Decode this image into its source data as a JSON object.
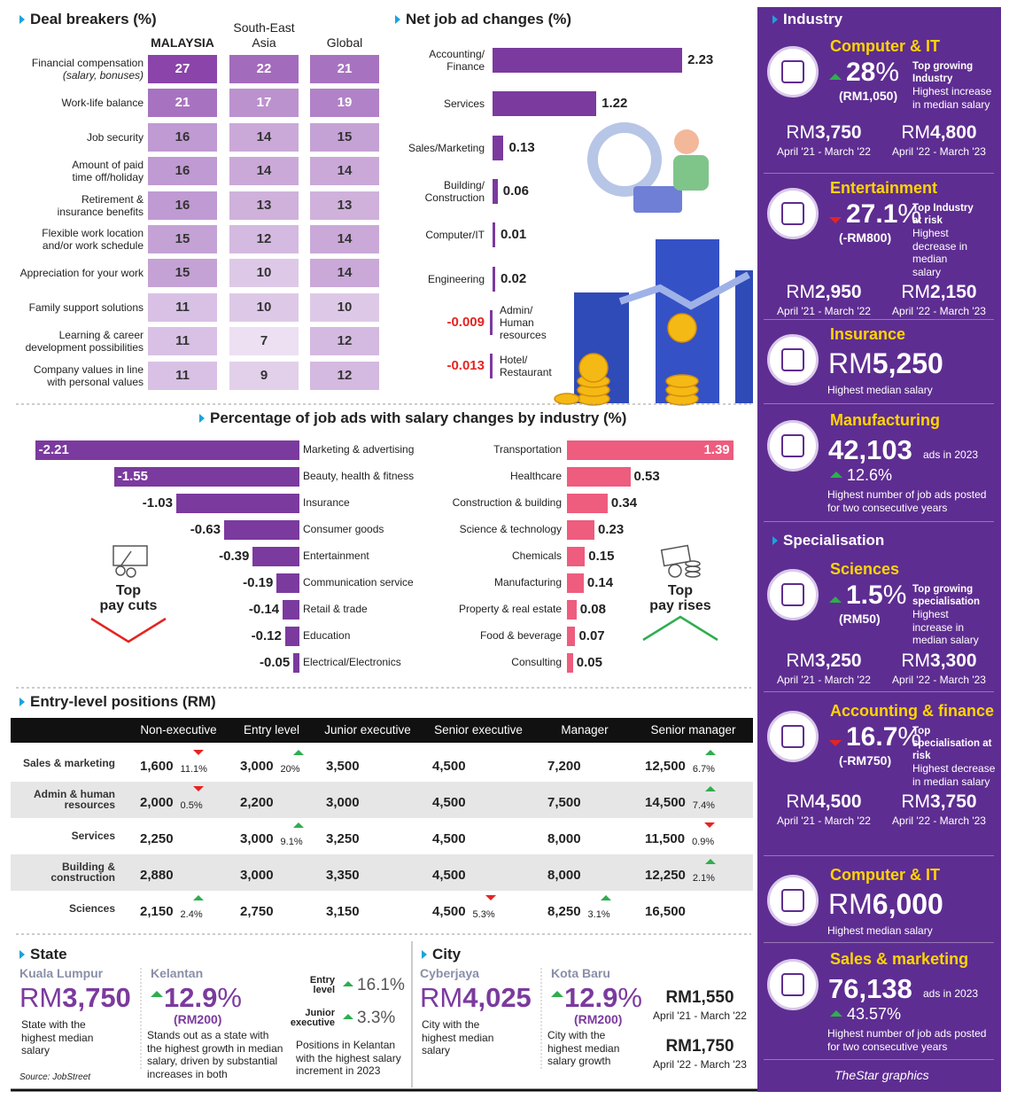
{
  "deal_breakers": {
    "title": "Deal breakers (%)",
    "columns": [
      "MALAYSIA",
      "South-East\nAsia",
      "Global"
    ],
    "rows": [
      {
        "label": "Financial compensation",
        "note": "(salary, bonuses)",
        "values": [
          27,
          22,
          21
        ]
      },
      {
        "label": "Work-life balance",
        "values": [
          21,
          17,
          19
        ]
      },
      {
        "label": "Job security",
        "values": [
          16,
          14,
          15
        ]
      },
      {
        "label": "Amount of paid\ntime off/holiday",
        "values": [
          16,
          14,
          14
        ]
      },
      {
        "label": "Retirement &\ninsurance benefits",
        "values": [
          16,
          13,
          13
        ]
      },
      {
        "label": "Flexible work location\nand/or work schedule",
        "values": [
          15,
          12,
          14
        ]
      },
      {
        "label": "Appreciation for your work",
        "values": [
          15,
          10,
          14
        ]
      },
      {
        "label": "Family support solutions",
        "values": [
          11,
          10,
          10
        ]
      },
      {
        "label": "Learning & career\ndevelopment possibilities",
        "values": [
          11,
          7,
          12
        ]
      },
      {
        "label": "Company values in line\nwith personal values",
        "values": [
          11,
          9,
          12
        ]
      }
    ]
  },
  "chart_data": [
    {
      "type": "bar",
      "title": "Net job ad changes (%)",
      "categories": [
        "Accounting/\nFinance",
        "Services",
        "Sales/Marketing",
        "Building/\nConstruction",
        "Computer/IT",
        "Engineering",
        "Admin/\nHuman\nresources",
        "Hotel/\nRestaurant"
      ],
      "values": [
        2.23,
        1.22,
        0.13,
        0.06,
        0.01,
        0.02,
        -0.009,
        -0.013
      ],
      "color": "#7b3a9e",
      "negative_color": "#e52421"
    },
    {
      "type": "bar",
      "title": "Percentage of job ads with salary changes by industry (%)",
      "categories": [
        "Marketing & advertising",
        "Beauty, health & fitness",
        "Insurance",
        "Consumer goods",
        "Entertainment",
        "Communication service",
        "Retail & trade",
        "Education",
        "Electrical/Electronics"
      ],
      "values": [
        -2.21,
        -1.55,
        -1.03,
        -0.63,
        -0.39,
        -0.19,
        -0.14,
        -0.12,
        -0.05
      ],
      "color": "#7b3a9e",
      "annotation": "Top\npay cuts"
    },
    {
      "type": "bar",
      "categories": [
        "Transportation",
        "Healthcare",
        "Construction & building",
        "Science & technology",
        "Chemicals",
        "Manufacturing",
        "Property & real estate",
        "Food & beverage",
        "Consulting"
      ],
      "values": [
        1.39,
        0.53,
        0.34,
        0.23,
        0.15,
        0.14,
        0.08,
        0.07,
        0.05
      ],
      "color": "#ee5c7e",
      "annotation": "Top\npay rises"
    }
  ],
  "entry_level": {
    "title": "Entry-level positions (RM)",
    "columns": [
      "Non-executive",
      "Entry level",
      "Junior executive",
      "Senior executive",
      "Manager",
      "Senior manager"
    ],
    "rows": [
      {
        "label": "Sales & marketing",
        "cells": [
          {
            "value": "1,600",
            "change": "11.1%",
            "trend": "down"
          },
          {
            "value": "3,000",
            "change": "20%",
            "trend": "up"
          },
          {
            "value": "3,500"
          },
          {
            "value": "4,500"
          },
          {
            "value": "7,200"
          },
          {
            "value": "12,500",
            "change": "6.7%",
            "trend": "up"
          }
        ]
      },
      {
        "label": "Admin & human\nresources",
        "cells": [
          {
            "value": "2,000",
            "change": "0.5%",
            "trend": "down"
          },
          {
            "value": "2,200"
          },
          {
            "value": "3,000"
          },
          {
            "value": "4,500"
          },
          {
            "value": "7,500"
          },
          {
            "value": "14,500",
            "change": "7.4%",
            "trend": "up"
          }
        ]
      },
      {
        "label": "Services",
        "cells": [
          {
            "value": "2,250"
          },
          {
            "value": "3,000",
            "change": "9.1%",
            "trend": "up"
          },
          {
            "value": "3,250"
          },
          {
            "value": "4,500"
          },
          {
            "value": "8,000"
          },
          {
            "value": "11,500",
            "change": "0.9%",
            "trend": "down"
          }
        ]
      },
      {
        "label": "Building &\nconstruction",
        "cells": [
          {
            "value": "2,880"
          },
          {
            "value": "3,000"
          },
          {
            "value": "3,350"
          },
          {
            "value": "4,500"
          },
          {
            "value": "8,000"
          },
          {
            "value": "12,250",
            "change": "2.1%",
            "trend": "up"
          }
        ]
      },
      {
        "label": "Sciences",
        "cells": [
          {
            "value": "2,150",
            "change": "2.4%",
            "trend": "up"
          },
          {
            "value": "2,750"
          },
          {
            "value": "3,150"
          },
          {
            "value": "4,500",
            "change": "5.3%",
            "trend": "down"
          },
          {
            "value": "8,250",
            "change": "3.1%",
            "trend": "up"
          },
          {
            "value": "16,500"
          }
        ]
      }
    ]
  },
  "state": {
    "title": "State",
    "items": [
      {
        "name": "Kuala Lumpur",
        "value": "RM3,750",
        "note": "State with the\nhighest median\nsalary"
      },
      {
        "name": "Kelantan",
        "value": "12.9%",
        "trend": "up",
        "sub": "(RM200)",
        "note": "Stands out as a state with\nthe highest growth in median\nsalary, driven by substantial\nincreases in both"
      }
    ],
    "positions": [
      {
        "label": "Entry\nlevel",
        "value": "16.1%",
        "trend": "up"
      },
      {
        "label": "Junior\nexecutive",
        "value": "3.3%",
        "trend": "up"
      }
    ],
    "positions_note": "Positions in Kelantan\nwith the highest salary\nincrement in 2023",
    "source": "Source: JobStreet"
  },
  "city": {
    "title": "City",
    "items": [
      {
        "name": "Cyberjaya",
        "value": "RM4,025",
        "note": "City with the\nhighest median\nsalary"
      },
      {
        "name": "Kota Baru",
        "value": "12.9%",
        "trend": "up",
        "sub": "(RM200)",
        "note": "City with the\nhighest median\nsalary growth"
      }
    ],
    "periods": [
      {
        "value": "RM1,550",
        "label": "April '21 - March '22"
      },
      {
        "value": "RM1,750",
        "label": "April '22 - March '23"
      }
    ]
  },
  "sidebar": {
    "sections": [
      {
        "title": "Industry",
        "items": [
          {
            "name": "Computer & IT",
            "change": "28%",
            "trend": "up",
            "sub": "(RM1,050)",
            "tag": "Top growing\nIndustry",
            "note": "Highest increase\nin median salary",
            "periods": [
              {
                "value": "RM3,750",
                "label": "April '21 - March '22"
              },
              {
                "value": "RM4,800",
                "label": "April '22 - March '23"
              }
            ]
          },
          {
            "name": "Entertainment",
            "change": "27.1%",
            "trend": "down",
            "sub": "(-RM800)",
            "tag": "Top Industry\nat risk",
            "note": "Highest\ndecrease in\nmedian\nsalary",
            "periods": [
              {
                "value": "RM2,950",
                "label": "April '21 - March '22"
              },
              {
                "value": "RM2,150",
                "label": "April '22 - March '23"
              }
            ]
          },
          {
            "name": "Insurance",
            "value": "RM5,250",
            "note": "Highest median salary"
          },
          {
            "name": "Manufacturing",
            "value": "42,103",
            "unit": "ads in 2023",
            "change": "12.6%",
            "trend": "up",
            "note": "Highest number of job ads posted\nfor two consecutive years"
          }
        ]
      },
      {
        "title": "Specialisation",
        "items": [
          {
            "name": "Sciences",
            "change": "1.5%",
            "trend": "up",
            "sub": "(RM50)",
            "tag": "Top growing\nspecialisation",
            "note": "Highest\nincrease in\nmedian salary",
            "periods": [
              {
                "value": "RM3,250",
                "label": "April '21 - March '22"
              },
              {
                "value": "RM3,300",
                "label": "April '22 - March '23"
              }
            ]
          },
          {
            "name": "Accounting & finance",
            "change": "16.7%",
            "trend": "down",
            "sub": "(-RM750)",
            "tag": "Top specialisation at risk",
            "note": "Highest decrease in median salary",
            "periods": [
              {
                "value": "RM4,500",
                "label": "April '21 - March '22"
              },
              {
                "value": "RM3,750",
                "label": "April '22 - March '23"
              }
            ]
          },
          {
            "name": "Computer & IT",
            "value": "RM6,000",
            "note": "Highest median salary"
          },
          {
            "name": "Sales & marketing",
            "value": "76,138",
            "unit": "ads in 2023",
            "change": "43.57%",
            "trend": "up",
            "note": "Highest number of job ads posted\nfor two consecutive years"
          }
        ]
      }
    ],
    "credit": "TheStar graphics"
  }
}
